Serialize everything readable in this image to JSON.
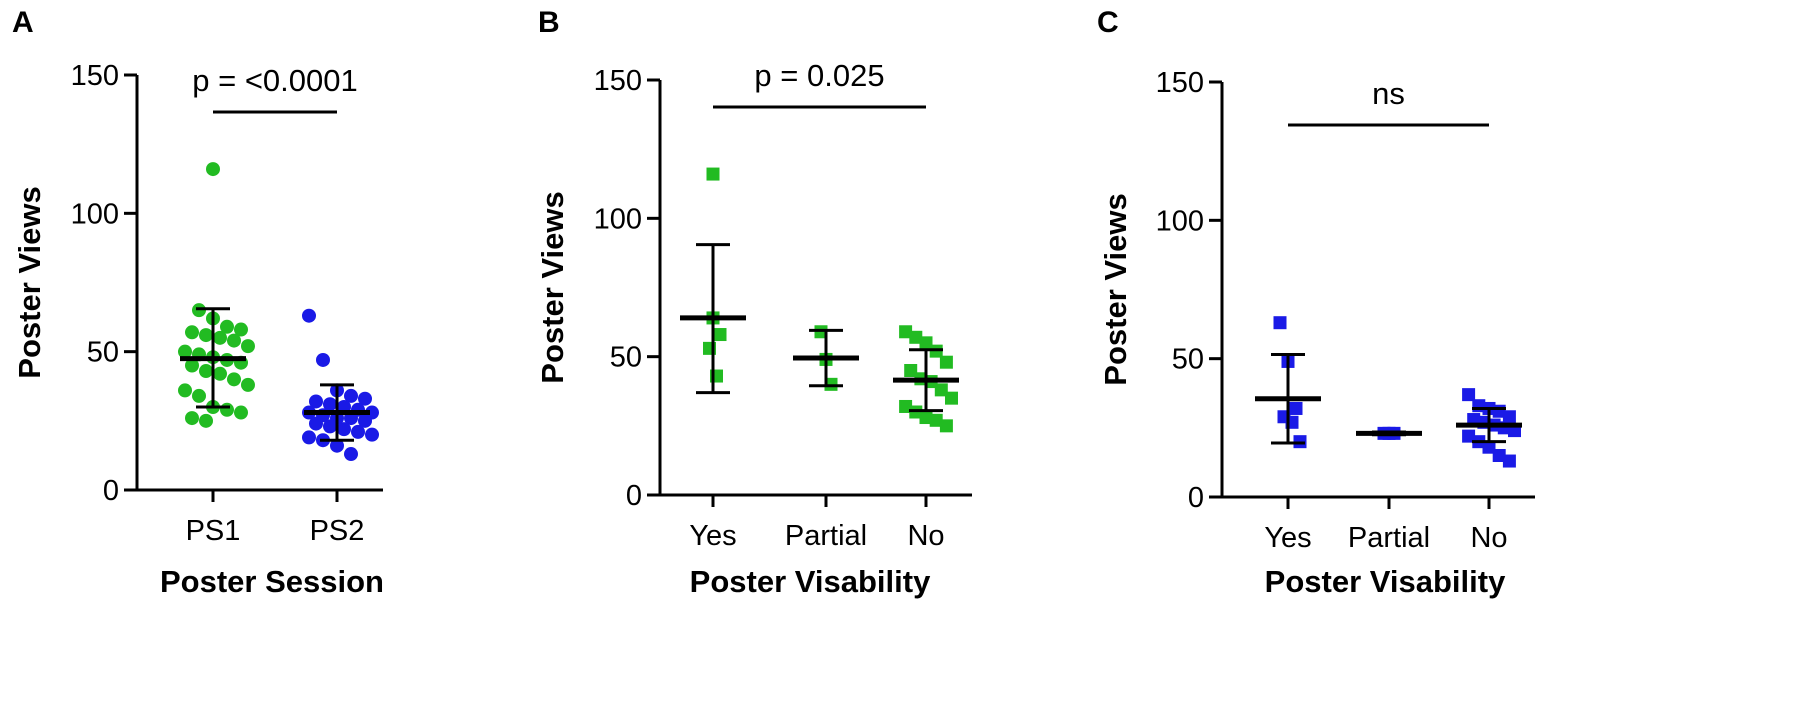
{
  "chart_data": [
    {
      "panel": "A",
      "type": "scatter",
      "xlabel": "Poster Session",
      "ylabel": "Poster Views",
      "ylim": [
        0,
        150
      ],
      "yticks": [
        0,
        50,
        100,
        150
      ],
      "marker": "circle",
      "categories": [
        "PS1",
        "PS2"
      ],
      "groups": [
        {
          "category": "PS1",
          "color": "#22bb22",
          "points": [
            116,
            65,
            62,
            59,
            58,
            57,
            56,
            55,
            54,
            52,
            50,
            49,
            48,
            47,
            46,
            45,
            43,
            42,
            40,
            38,
            36,
            34,
            30,
            29,
            28,
            26,
            25
          ],
          "mean": 47.5,
          "err_low": 30,
          "err_high": 65.5
        },
        {
          "category": "PS2",
          "color": "#1a1ae6",
          "points": [
            63,
            47,
            36,
            34,
            33,
            32,
            31,
            30,
            29,
            28,
            28,
            27,
            26,
            26,
            25,
            24,
            23,
            22,
            21,
            20,
            19,
            18,
            16,
            13
          ],
          "mean": 28,
          "err_low": 18,
          "err_high": 38
        }
      ],
      "comparison": {
        "label": "p = <0.0001",
        "from": 0,
        "to": 1
      }
    },
    {
      "panel": "B",
      "type": "scatter",
      "xlabel": "Poster Visability",
      "ylabel": "Poster Views",
      "ylim": [
        0,
        150
      ],
      "yticks": [
        0,
        50,
        100,
        150
      ],
      "marker": "square",
      "categories": [
        "Yes",
        "Partial",
        "No"
      ],
      "groups": [
        {
          "category": "Yes",
          "color": "#22bb22",
          "points": [
            116,
            64,
            58,
            53,
            43
          ],
          "mean": 64,
          "err_low": 37,
          "err_high": 90.5
        },
        {
          "category": "Partial",
          "color": "#22bb22",
          "points": [
            59,
            49,
            40
          ],
          "mean": 49.5,
          "err_low": 39.5,
          "err_high": 59.5
        },
        {
          "category": "No",
          "color": "#22bb22",
          "points": [
            59,
            57,
            55,
            52,
            48,
            45,
            42,
            41,
            38,
            35,
            32,
            30,
            28,
            27,
            25
          ],
          "mean": 41.5,
          "err_low": 30.5,
          "err_high": 52.5
        }
      ],
      "comparison": {
        "label": "p = 0.025",
        "from": 0,
        "to": 2
      }
    },
    {
      "panel": "C",
      "type": "scatter",
      "xlabel": "Poster Visability",
      "ylabel": "Poster Views",
      "ylim": [
        0,
        150
      ],
      "yticks": [
        0,
        50,
        100,
        150
      ],
      "marker": "square",
      "categories": [
        "Yes",
        "Partial",
        "No"
      ],
      "groups": [
        {
          "category": "Yes",
          "color": "#1a1ae6",
          "points": [
            63,
            49,
            32,
            29,
            27,
            20
          ],
          "mean": 35.5,
          "err_low": 19.5,
          "err_high": 51.5
        },
        {
          "category": "Partial",
          "color": "#1a1ae6",
          "points": [
            23,
            23,
            23
          ],
          "mean": 23,
          "err_low": 22.5,
          "err_high": 23.5
        },
        {
          "category": "No",
          "color": "#1a1ae6",
          "points": [
            37,
            33,
            32,
            31,
            29,
            28,
            27,
            26,
            25,
            24,
            22,
            20,
            18,
            15,
            13
          ],
          "mean": 26,
          "err_low": 20,
          "err_high": 32
        }
      ],
      "comparison": {
        "label": "ns",
        "from": 0,
        "to": 2
      }
    }
  ]
}
